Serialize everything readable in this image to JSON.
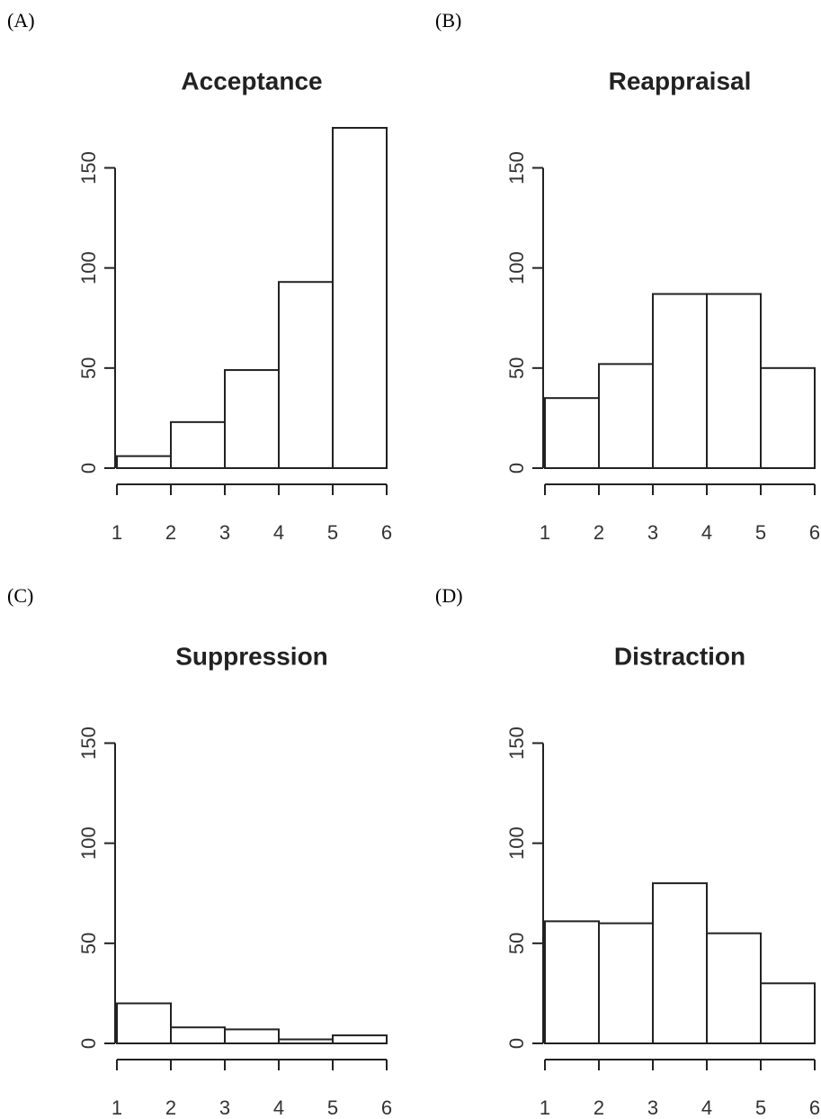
{
  "chart_data": [
    {
      "type": "histogram",
      "panel": "(A)",
      "title": "Acceptance",
      "bins": [
        1,
        2,
        3,
        4,
        5,
        6
      ],
      "values": [
        6,
        23,
        49,
        93,
        170
      ],
      "color": "#ffffff",
      "xlim": [
        1,
        6
      ],
      "xticks": [
        1,
        2,
        3,
        4,
        5,
        6
      ],
      "ylim": [
        0,
        170
      ],
      "yticks": [
        0,
        50,
        100,
        150
      ]
    },
    {
      "type": "histogram",
      "panel": "(B)",
      "title": "Reappraisal",
      "bins": [
        1,
        2,
        3,
        4,
        5,
        6
      ],
      "values": [
        35,
        52,
        87,
        87,
        50
      ],
      "color": "#ffffff",
      "xlim": [
        1,
        6
      ],
      "xticks": [
        1,
        2,
        3,
        4,
        5,
        6
      ],
      "ylim": [
        0,
        170
      ],
      "yticks": [
        0,
        50,
        100,
        150
      ]
    },
    {
      "type": "histogram",
      "panel": "(C)",
      "title": "Suppression",
      "bins": [
        1,
        2,
        3,
        4,
        5,
        6
      ],
      "values": [
        20,
        8,
        7,
        2,
        4
      ],
      "color": "#ffffff",
      "xlim": [
        1,
        6
      ],
      "xticks": [
        1,
        2,
        3,
        4,
        5,
        6
      ],
      "ylim": [
        0,
        170
      ],
      "yticks": [
        0,
        50,
        100,
        150
      ]
    },
    {
      "type": "histogram",
      "panel": "(D)",
      "title": "Distraction",
      "bins": [
        1,
        2,
        3,
        4,
        5,
        6
      ],
      "values": [
        61,
        60,
        80,
        55,
        30
      ],
      "color": "#ffffff",
      "xlim": [
        1,
        6
      ],
      "xticks": [
        1,
        2,
        3,
        4,
        5,
        6
      ],
      "ylim": [
        0,
        170
      ],
      "yticks": [
        0,
        50,
        100,
        150
      ]
    }
  ]
}
